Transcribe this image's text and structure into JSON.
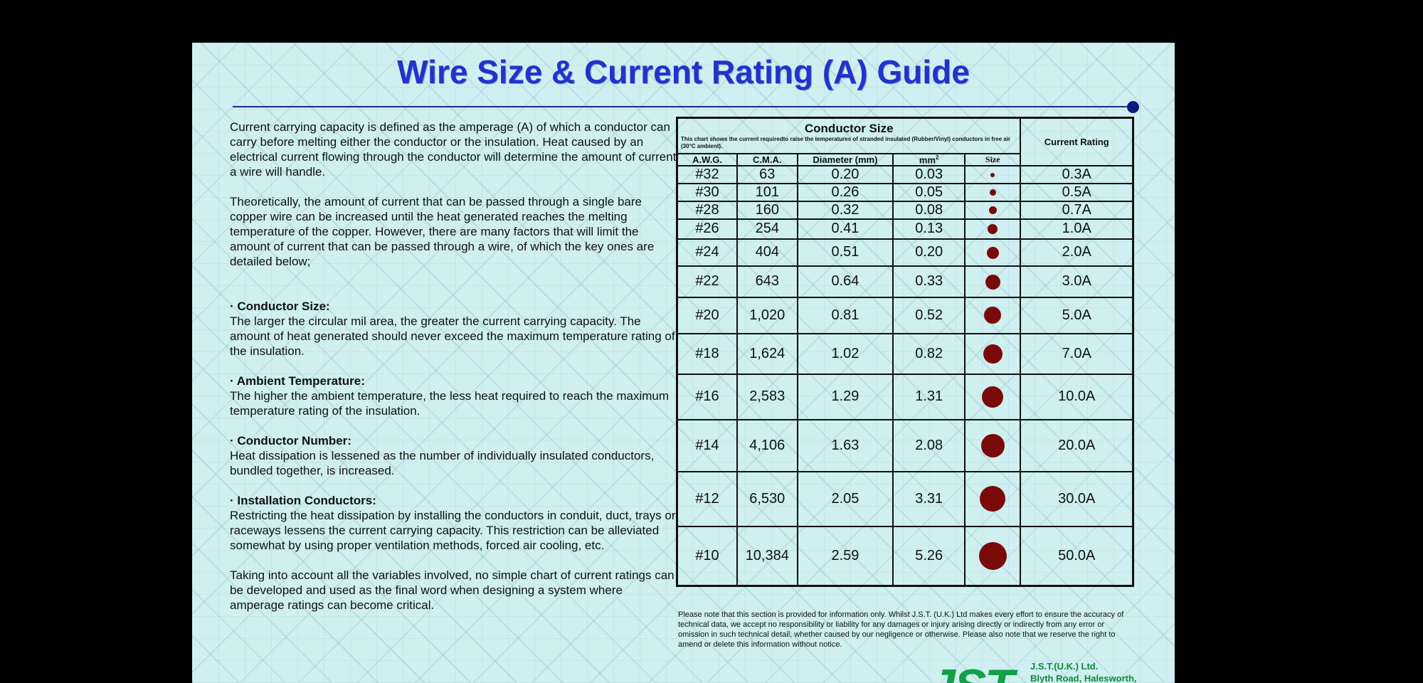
{
  "title": "Wire Size & Current Rating (A) Guide",
  "colors": {
    "title": "#2233c8",
    "dot": "#7a0a0a",
    "logo": "#11a048"
  },
  "body": {
    "intro1": "Current carrying capacity is defined as the amperage (A) of which a conductor can carry before melting either the conductor or the insulation. Heat caused by an electrical current flowing through the conductor will determine the amount of current a wire will handle.",
    "intro2": "Theoretically, the amount of current that can be passed through a single bare copper wire can be increased until the heat generated reaches the melting temperature of the copper. However, there are many factors that will limit the amount of current that can be passed through a wire, of which the key ones are detailed below;",
    "factors": [
      {
        "heading": "· Conductor Size:",
        "text": "The larger the circular mil area, the greater the current carrying capacity. The amount of heat generated should never exceed the maximum temperature rating of the insulation."
      },
      {
        "heading": "· Ambient Temperature:",
        "text": "The higher the ambient temperature, the less heat required to reach the maximum temperature rating of the insulation."
      },
      {
        "heading": "· Conductor Number:",
        "text": "Heat dissipation is lessened as the number of individually insulated conductors, bundled together, is increased."
      },
      {
        "heading": "· Installation Conductors:",
        "text": "Restricting the heat dissipation by installing the conductors in conduit, duct, trays or raceways lessens the current carrying capacity. This restriction can be alleviated somewhat by using proper ventilation methods, forced air cooling, etc."
      }
    ],
    "closing": "Taking into account all the variables involved, no simple chart of current ratings can be developed and used as the final word when designing a system where amperage ratings can become critical."
  },
  "table": {
    "header_title": "Conductor Size",
    "header_note": "This chart shows the current requiredto raise the temperatures of stranded insulated (Rubber/Vinyl) conductors in free air (30°C ambient).",
    "rating_header": "Current Rating",
    "columns": {
      "awg": "A.W.G.",
      "cma": "C.M.A.",
      "diameter": "Diameter (mm)",
      "mm2": "mm",
      "mm2_sup": "2",
      "size": "Size"
    },
    "rows": [
      {
        "awg": "#32",
        "cma": "63",
        "diameter": "0.20",
        "mm2": "0.03",
        "rating": "0.3A"
      },
      {
        "awg": "#30",
        "cma": "101",
        "diameter": "0.26",
        "mm2": "0.05",
        "rating": "0.5A"
      },
      {
        "awg": "#28",
        "cma": "160",
        "diameter": "0.32",
        "mm2": "0.08",
        "rating": "0.7A"
      },
      {
        "awg": "#26",
        "cma": "254",
        "diameter": "0.41",
        "mm2": "0.13",
        "rating": "1.0A"
      },
      {
        "awg": "#24",
        "cma": "404",
        "diameter": "0.51",
        "mm2": "0.20",
        "rating": "2.0A"
      },
      {
        "awg": "#22",
        "cma": "643",
        "diameter": "0.64",
        "mm2": "0.33",
        "rating": "3.0A"
      },
      {
        "awg": "#20",
        "cma": "1,020",
        "diameter": "0.81",
        "mm2": "0.52",
        "rating": "5.0A"
      },
      {
        "awg": "#18",
        "cma": "1,624",
        "diameter": "1.02",
        "mm2": "0.82",
        "rating": "7.0A"
      },
      {
        "awg": "#16",
        "cma": "2,583",
        "diameter": "1.29",
        "mm2": "1.31",
        "rating": "10.0A"
      },
      {
        "awg": "#14",
        "cma": "4,106",
        "diameter": "1.63",
        "mm2": "2.08",
        "rating": "20.0A"
      },
      {
        "awg": "#12",
        "cma": "6,530",
        "diameter": "2.05",
        "mm2": "3.31",
        "rating": "30.0A"
      },
      {
        "awg": "#10",
        "cma": "10,384",
        "diameter": "2.59",
        "mm2": "5.26",
        "rating": "50.0A"
      }
    ]
  },
  "note": "Please note that this section is provided for information only. Whilst J.S.T. (U.K.) Ltd makes every effort to ensure the accuracy of technical data, we accept no responsibility or liability for any damages or injury arising directly or indirectly from any error or omission in such technical detail, whether caused by our negligence or otherwise. Please also note that we reserve the right to amend or delete this information without notice.",
  "footer": {
    "logo_text": "JST",
    "company": "J.S.T.(U.K.) Ltd.",
    "address_line": "Blyth Road, Halesworth,"
  }
}
